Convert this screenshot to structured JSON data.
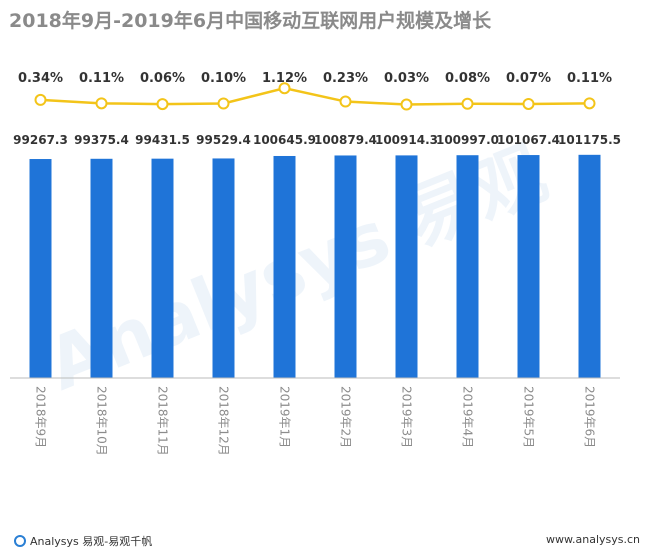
{
  "header": {
    "title": "2018年9月-2019年6月中国移动互联网用户规模及增长"
  },
  "footer": {
    "left_text": "Analysys 易观-易观千帆",
    "right_text": "www.analysys.cn"
  },
  "watermark": {
    "text": "Analysys 易观"
  },
  "colors": {
    "bar": "#1f74d8",
    "line": "#f3c419",
    "marker_fill": "#ffffff",
    "axis": "#bbbbbb",
    "label": "#333333",
    "tick": "#8c8c8c",
    "title": "#8a8a8a"
  },
  "chart_data": {
    "type": "bar",
    "categories": [
      "2018年9月",
      "2018年10月",
      "2018年11月",
      "2018年12月",
      "2019年1月",
      "2019年2月",
      "2019年3月",
      "2019年4月",
      "2019年5月",
      "2019年6月"
    ],
    "series": [
      {
        "values": [
          99267.3,
          99375.4,
          99431.5,
          99529.4,
          100645.9,
          100879.4,
          100914.3,
          100997.0,
          101067.4,
          101175.5
        ],
        "labels": [
          "99267.3",
          "99375.4",
          "99431.5",
          "99529.4",
          "100645.9",
          "100879.4",
          "100914.3",
          "100997.0",
          "101067.4",
          "101175.5"
        ]
      },
      {
        "type": "line",
        "values": [
          0.34,
          0.11,
          0.06,
          0.1,
          1.12,
          0.23,
          0.03,
          0.08,
          0.07,
          0.11
        ],
        "labels": [
          "0.34%",
          "0.11%",
          "0.06%",
          "0.10%",
          "1.12%",
          "0.23%",
          "0.03%",
          "0.08%",
          "0.07%",
          "0.11%"
        ]
      }
    ],
    "title": "2018年9月-2019年6月中国移动互联网用户规模及增长",
    "xlabel": "",
    "ylabel": "",
    "ylim": [
      0,
      102000
    ],
    "grid": false,
    "legend": "none"
  }
}
